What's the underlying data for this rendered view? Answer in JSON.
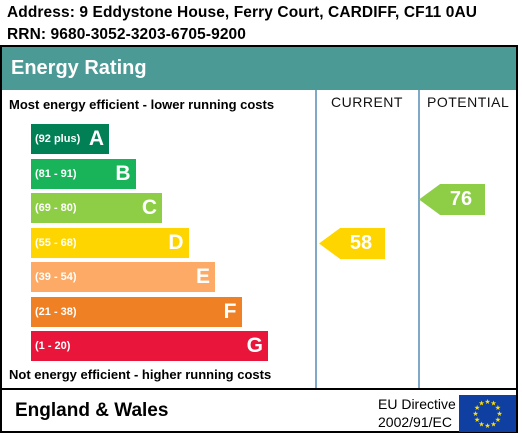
{
  "address": {
    "line1": "Address: 9 Eddystone House, Ferry Court, CARDIFF, CF11 0AU",
    "line2": "RRN: 9680-3052-3203-6705-9200"
  },
  "header": {
    "title": "Energy Rating"
  },
  "columns": {
    "current": "CURRENT",
    "potential": "POTENTIAL"
  },
  "notes": {
    "top": "Most energy efficient - lower running costs",
    "bottom": "Not energy efficient - higher running costs"
  },
  "bands": [
    {
      "range": "(92 plus)",
      "letter": "A",
      "color": "#008054"
    },
    {
      "range": "(81 - 91)",
      "letter": "B",
      "color": "#19b459"
    },
    {
      "range": "(69 - 80)",
      "letter": "C",
      "color": "#8dce46"
    },
    {
      "range": "(55 - 68)",
      "letter": "D",
      "color": "#ffd500"
    },
    {
      "range": "(39 - 54)",
      "letter": "E",
      "color": "#fcaa65"
    },
    {
      "range": "(21 - 38)",
      "letter": "F",
      "color": "#ef8023"
    },
    {
      "range": "(1 - 20)",
      "letter": "G",
      "color": "#e9153b"
    }
  ],
  "current": {
    "value": "58",
    "band": "D",
    "color": "#ffd500"
  },
  "potential": {
    "value": "76",
    "band": "C",
    "color": "#8dce46"
  },
  "footer": {
    "region": "England & Wales",
    "directive_line1": "EU Directive",
    "directive_line2": "2002/91/EC",
    "flag_icon": "eu-flag-icon"
  }
}
